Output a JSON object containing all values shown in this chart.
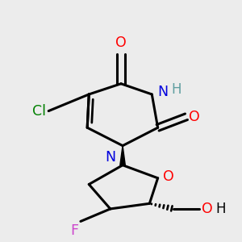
{
  "bg_color": "#ececec",
  "bond_color": "#000000",
  "bond_width": 2.2,
  "figsize": [
    3.0,
    3.0
  ],
  "dpi": 100,
  "colors": {
    "O": "#ff0000",
    "N": "#0000dd",
    "Cl": "#008000",
    "F": "#cc44cc",
    "H_teal": "#5f9ea0",
    "C": "#000000"
  }
}
